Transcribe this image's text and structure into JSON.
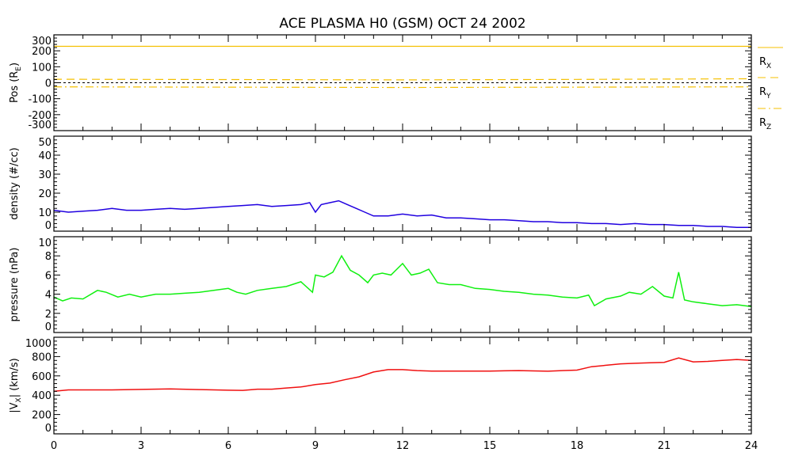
{
  "chart_data": {
    "type": "line",
    "title": "ACE PLASMA H0 (GSM)   OCT 24 2002",
    "xlabel": "",
    "xlim": [
      0,
      24
    ],
    "xticks": [
      "0",
      "3",
      "6",
      "9",
      "12",
      "15",
      "18",
      "21",
      "24"
    ],
    "colors": {
      "pos": "#f5c000",
      "density": "#2000e0",
      "pressure": "#10f010",
      "vx": "#f01010"
    },
    "panels": [
      {
        "ylabel": "Pos (R",
        "ylabel_sub": "E",
        "ylabel_end": ")",
        "ylim": [
          -300,
          300
        ],
        "yticks": [
          "-300",
          "-200",
          "-100",
          "0",
          "100",
          "200",
          "300"
        ],
        "series": [
          {
            "name": "R",
            "sub": "X",
            "style": "solid",
            "x": [
              0,
              24
            ],
            "y": [
              228,
              228
            ]
          },
          {
            "name": "R",
            "sub": "Y",
            "style": "dash",
            "x": [
              0,
              6,
              12,
              18,
              24
            ],
            "y": [
              22,
              20,
              18,
              21,
              25
            ]
          },
          {
            "name": "R",
            "sub": "Z",
            "style": "dashdot",
            "x": [
              0,
              6,
              12,
              18,
              24
            ],
            "y": [
              -26,
              -28,
              -30,
              -28,
              -26
            ]
          }
        ]
      },
      {
        "ylabel": "density (#/cc)",
        "ylim": [
          0,
          50
        ],
        "yticks": [
          "0",
          "10",
          "20",
          "30",
          "40",
          "50"
        ],
        "series": [
          {
            "name": "density",
            "x": [
              0,
              0.5,
              1,
              1.5,
              2,
              2.5,
              3,
              3.5,
              4,
              4.5,
              5,
              5.5,
              6,
              6.5,
              7,
              7.5,
              8,
              8.5,
              8.8,
              9,
              9.2,
              9.5,
              9.8,
              10.1,
              10.4,
              10.7,
              11,
              11.5,
              12,
              12.5,
              13,
              13.5,
              14,
              14.5,
              15,
              15.5,
              16,
              16.5,
              17,
              17.5,
              18,
              18.5,
              19,
              19.5,
              20,
              20.5,
              21,
              21.5,
              22,
              22.5,
              23,
              23.5,
              24
            ],
            "y": [
              11,
              10,
              10.5,
              11,
              12,
              11,
              11,
              11.5,
              12,
              11.5,
              12,
              12.5,
              13,
              13.5,
              14,
              13,
              13.5,
              14,
              15,
              10,
              14,
              15,
              16,
              14,
              12,
              10,
              8,
              8,
              9,
              8,
              8.5,
              7,
              7,
              6.5,
              6,
              6,
              5.5,
              5,
              5,
              4.5,
              4.5,
              4,
              4,
              3.5,
              4,
              3.5,
              3.5,
              3,
              3,
              2.5,
              2.5,
              2,
              2
            ]
          }
        ]
      },
      {
        "ylabel": "pressure (nPa)",
        "ylim": [
          0,
          10
        ],
        "yticks": [
          "0",
          "2",
          "4",
          "6",
          "8",
          "10"
        ],
        "series": [
          {
            "name": "pressure",
            "x": [
              0,
              0.3,
              0.6,
              1,
              1.5,
              1.8,
              2.2,
              2.6,
              3,
              3.5,
              4,
              4.5,
              5,
              5.5,
              6,
              6.3,
              6.6,
              7,
              7.5,
              8,
              8.5,
              8.9,
              9,
              9.3,
              9.6,
              9.9,
              10.2,
              10.5,
              10.8,
              11,
              11.3,
              11.6,
              12,
              12.3,
              12.6,
              12.9,
              13.2,
              13.6,
              14,
              14.5,
              15,
              15.5,
              16,
              16.5,
              17,
              17.5,
              18,
              18.4,
              18.6,
              19,
              19.5,
              19.8,
              20.2,
              20.6,
              21,
              21.3,
              21.5,
              21.7,
              22,
              22.5,
              23,
              23.5,
              24
            ],
            "y": [
              3.7,
              3.3,
              3.6,
              3.5,
              4.4,
              4.2,
              3.7,
              4.0,
              3.7,
              4.0,
              4.0,
              4.1,
              4.2,
              4.4,
              4.6,
              4.2,
              4.0,
              4.4,
              4.6,
              4.8,
              5.3,
              4.2,
              6.0,
              5.8,
              6.3,
              8.0,
              6.5,
              6.0,
              5.2,
              6.0,
              6.2,
              6.0,
              7.2,
              6.0,
              6.2,
              6.6,
              5.2,
              5.0,
              5.0,
              4.6,
              4.5,
              4.3,
              4.2,
              4.0,
              3.9,
              3.7,
              3.6,
              3.9,
              2.8,
              3.5,
              3.8,
              4.2,
              4.0,
              4.8,
              3.8,
              3.6,
              6.3,
              3.4,
              3.2,
              3.0,
              2.8,
              2.9,
              2.7
            ]
          }
        ]
      },
      {
        "ylabel": "|V",
        "ylabel_sub": "X",
        "ylabel_end": "| (km/s)",
        "ylim": [
          0,
          1000
        ],
        "yticks": [
          "0",
          "200",
          "400",
          "600",
          "800",
          "1000"
        ],
        "series": [
          {
            "name": "vx",
            "x": [
              0,
              0.5,
              1,
              2,
              3,
              4,
              5,
              6,
              6.5,
              7,
              7.5,
              8,
              8.5,
              9,
              9.5,
              10,
              10.5,
              11,
              11.5,
              12,
              12.5,
              13,
              14,
              15,
              16,
              17,
              17.5,
              18,
              18.5,
              19,
              19.5,
              20,
              20.5,
              21,
              21.5,
              22,
              22.5,
              23,
              23.5,
              24
            ],
            "y": [
              440,
              455,
              455,
              455,
              460,
              465,
              458,
              452,
              450,
              462,
              462,
              475,
              485,
              510,
              525,
              560,
              590,
              640,
              665,
              665,
              655,
              650,
              650,
              650,
              655,
              648,
              655,
              660,
              695,
              710,
              725,
              730,
              735,
              740,
              785,
              745,
              750,
              760,
              770,
              760
            ]
          }
        ]
      }
    ]
  }
}
